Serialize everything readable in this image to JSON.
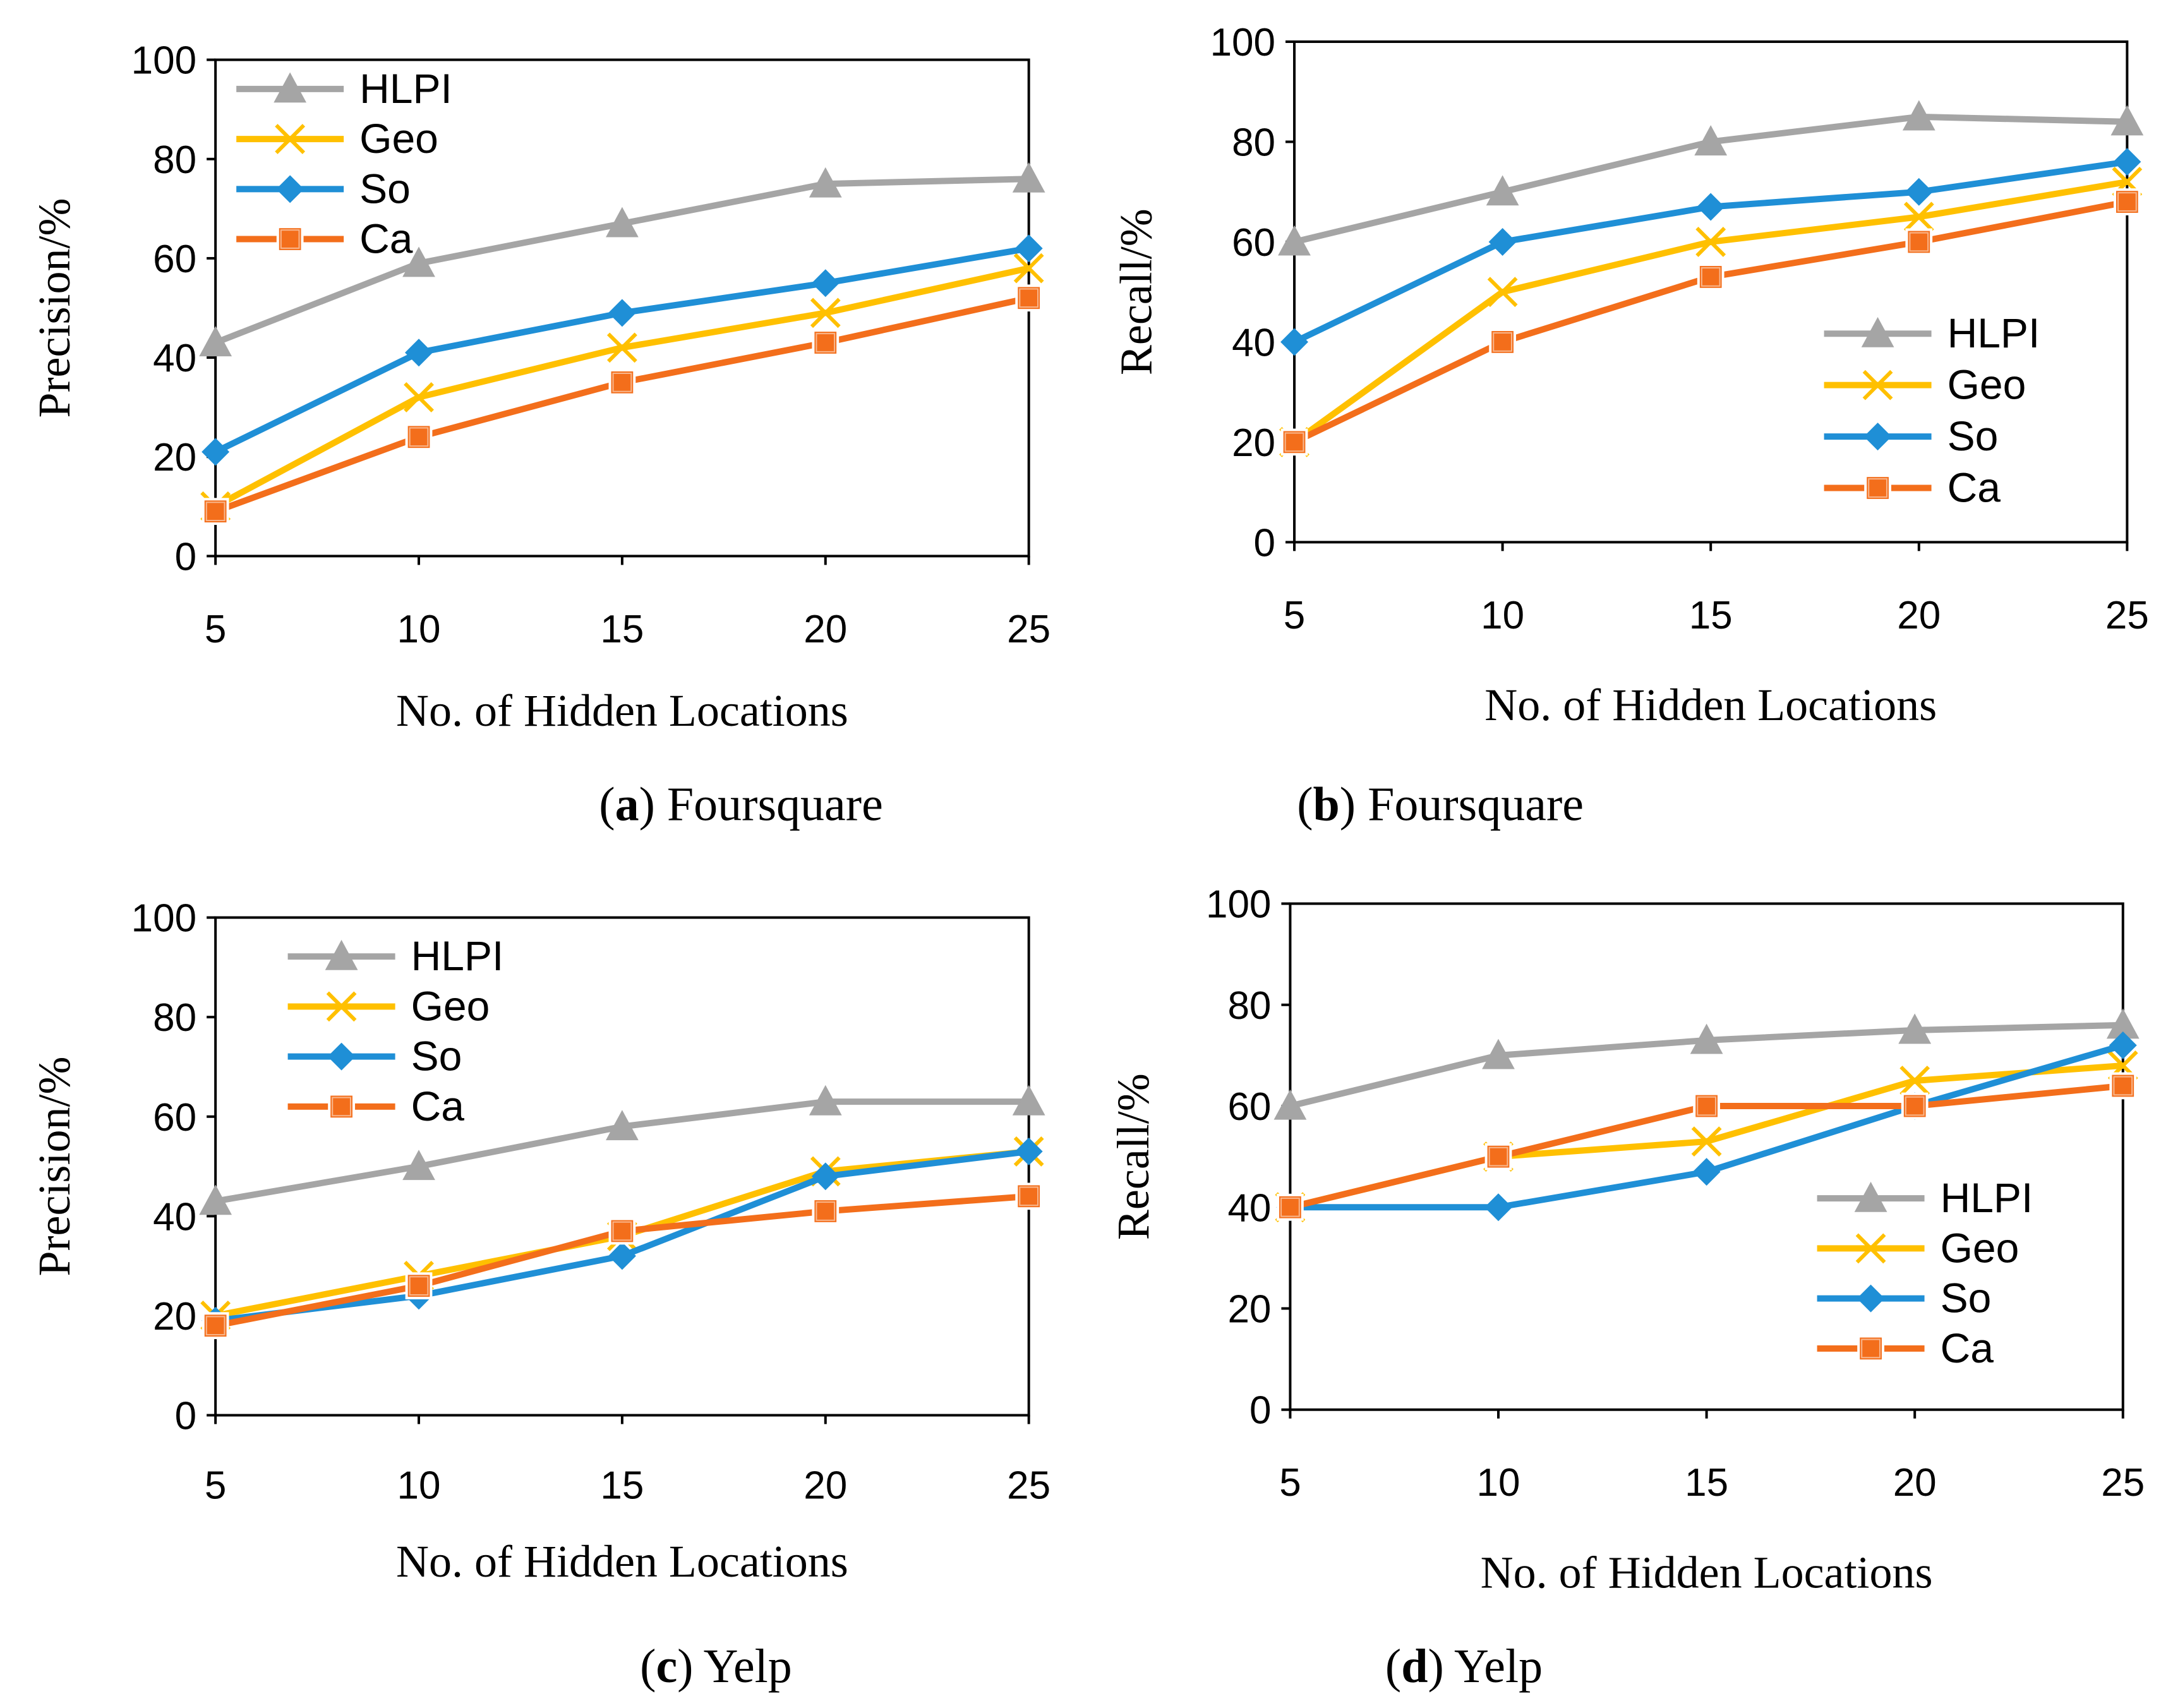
{
  "series_styles": [
    {
      "name": "HLPI",
      "color": "#A5A5A5",
      "marker": "triangle"
    },
    {
      "name": "Geo",
      "color": "#FFC000",
      "marker": "x"
    },
    {
      "name": "So",
      "color": "#1F8FD6",
      "marker": "diamond"
    },
    {
      "name": "Ca",
      "color": "#F36E1B",
      "marker": "square"
    }
  ],
  "chart_data": [
    {
      "type": "line",
      "caption_letter": "a",
      "caption_text": "Foursquare",
      "xlabel": "No. of  Hidden Locations",
      "ylabel": "Precision/%",
      "x": [
        5,
        10,
        15,
        20,
        25
      ],
      "ylim": [
        0,
        100
      ],
      "yticks": [
        0,
        20,
        40,
        60,
        80,
        100
      ],
      "legend_position": "top-left",
      "series": [
        {
          "name": "HLPI",
          "values": [
            43,
            59,
            67,
            75,
            76
          ]
        },
        {
          "name": "Geo",
          "values": [
            10,
            32,
            42,
            49,
            58
          ]
        },
        {
          "name": "So",
          "values": [
            21,
            41,
            49,
            55,
            62
          ]
        },
        {
          "name": "Ca",
          "values": [
            9,
            24,
            35,
            43,
            52
          ]
        }
      ]
    },
    {
      "type": "line",
      "caption_letter": "b",
      "caption_text": "Foursquare",
      "xlabel": "No. of  Hidden Locations",
      "ylabel": "Recall/%",
      "x": [
        5,
        10,
        15,
        20,
        25
      ],
      "ylim": [
        0,
        100
      ],
      "yticks": [
        0,
        20,
        40,
        60,
        80,
        100
      ],
      "legend_position": "bottom-right",
      "series": [
        {
          "name": "HLPI",
          "values": [
            60,
            70,
            80,
            85,
            84
          ]
        },
        {
          "name": "Geo",
          "values": [
            20,
            50,
            60,
            65,
            72
          ]
        },
        {
          "name": "So",
          "values": [
            40,
            60,
            67,
            70,
            76
          ]
        },
        {
          "name": "Ca",
          "values": [
            20,
            40,
            53,
            60,
            68
          ]
        }
      ]
    },
    {
      "type": "line",
      "caption_letter": "c",
      "caption_text": "Yelp",
      "xlabel": "No. of  Hidden Locations",
      "ylabel": "Precision/%",
      "x": [
        5,
        10,
        15,
        20,
        25
      ],
      "ylim": [
        0,
        100
      ],
      "yticks": [
        0,
        20,
        40,
        60,
        80,
        100
      ],
      "legend_position": "top-left",
      "series": [
        {
          "name": "HLPI",
          "values": [
            43,
            50,
            58,
            63,
            63
          ]
        },
        {
          "name": "Geo",
          "values": [
            20,
            28,
            36,
            49,
            53
          ]
        },
        {
          "name": "So",
          "values": [
            19,
            24,
            32,
            48,
            53
          ]
        },
        {
          "name": "Ca",
          "values": [
            18,
            26,
            37,
            41,
            44
          ]
        }
      ]
    },
    {
      "type": "line",
      "caption_letter": "d",
      "caption_text": "Yelp",
      "xlabel": "No. of  Hidden Locations",
      "ylabel": "Recall/%",
      "x": [
        5,
        10,
        15,
        20,
        25
      ],
      "ylim": [
        0,
        100
      ],
      "yticks": [
        0,
        20,
        40,
        60,
        80,
        100
      ],
      "legend_position": "bottom-right",
      "series": [
        {
          "name": "HLPI",
          "values": [
            60,
            70,
            73,
            75,
            76
          ]
        },
        {
          "name": "Geo",
          "values": [
            40,
            50,
            53,
            65,
            68
          ]
        },
        {
          "name": "So",
          "values": [
            40,
            40,
            47,
            60,
            72
          ]
        },
        {
          "name": "Ca",
          "values": [
            40,
            50,
            60,
            60,
            64
          ]
        }
      ]
    }
  ]
}
